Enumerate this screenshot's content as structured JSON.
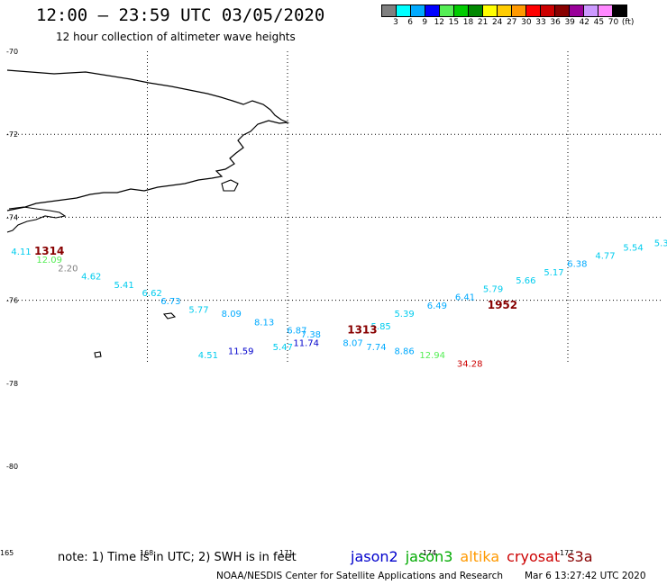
{
  "header": {
    "title": "12:00 – 23:59 UTC 03/05/2020",
    "subtitle": "12 hour collection of altimeter wave heights"
  },
  "legend": {
    "colors": [
      "#808080",
      "#00ffff",
      "#00aaff",
      "#0000ff",
      "#55ee55",
      "#00cc00",
      "#008800",
      "#ffff00",
      "#ffcc00",
      "#ff9900",
      "#ff0000",
      "#cc0000",
      "#880000",
      "#990099",
      "#cc99ff",
      "#ff88ff",
      "#000000"
    ],
    "labels": [
      "3",
      "6",
      "9",
      "12",
      "15",
      "18",
      "21",
      "24",
      "27",
      "30",
      "33",
      "36",
      "39",
      "42",
      "45",
      "70",
      "(ft)"
    ]
  },
  "axes": {
    "lat_labels": [
      "-70",
      "-72",
      "-74",
      "-76",
      "-78",
      "-80"
    ],
    "lon_labels": [
      "165",
      "168",
      "171",
      "-174",
      "177"
    ]
  },
  "chart_data": {
    "type": "scatter",
    "x_axis": "longitude",
    "y_axis": "latitude",
    "times": [
      {
        "label": "1314",
        "lon": 165.9,
        "lat": -74.9,
        "color": "#880000"
      },
      {
        "label": "1313",
        "lon": 172.6,
        "lat": -76.8,
        "color": "#880000"
      },
      {
        "label": "1952",
        "lon": 175.6,
        "lat": -76.2,
        "color": "#880000"
      }
    ],
    "wave_heights": [
      {
        "label": "4.11",
        "lon": 165.3,
        "lat": -74.9,
        "color": "#00ccee"
      },
      {
        "label": "12.09",
        "lon": 165.9,
        "lat": -75.1,
        "color": "#55ee55"
      },
      {
        "label": "2.20",
        "lon": 166.3,
        "lat": -75.3,
        "color": "#808080"
      },
      {
        "label": "4.62",
        "lon": 166.8,
        "lat": -75.5,
        "color": "#00ccee"
      },
      {
        "label": "5.41",
        "lon": 167.5,
        "lat": -75.7,
        "color": "#00ccee"
      },
      {
        "label": "6.62",
        "lon": 168.1,
        "lat": -75.9,
        "color": "#00ccee"
      },
      {
        "label": "6.73",
        "lon": 168.5,
        "lat": -76.1,
        "color": "#00aaff"
      },
      {
        "label": "5.77",
        "lon": 169.1,
        "lat": -76.3,
        "color": "#00ccee"
      },
      {
        "label": "8.09",
        "lon": 169.8,
        "lat": -76.4,
        "color": "#00aaff"
      },
      {
        "label": "8.13",
        "lon": 170.5,
        "lat": -76.6,
        "color": "#00aaff"
      },
      {
        "label": "6.87",
        "lon": 171.2,
        "lat": -76.8,
        "color": "#00aaff"
      },
      {
        "label": "7.38",
        "lon": 171.5,
        "lat": -76.9,
        "color": "#00aaff"
      },
      {
        "label": "11.74",
        "lon": 171.4,
        "lat": -77.1,
        "color": "#0000cc"
      },
      {
        "label": "8.07",
        "lon": 172.4,
        "lat": -77.1,
        "color": "#00aaff"
      },
      {
        "label": "5.85",
        "lon": 173.0,
        "lat": -76.7,
        "color": "#00ccee"
      },
      {
        "label": "5.39",
        "lon": 173.5,
        "lat": -76.4,
        "color": "#00ccee"
      },
      {
        "label": "6.49",
        "lon": 174.2,
        "lat": -76.2,
        "color": "#00aaff"
      },
      {
        "label": "6.41",
        "lon": 174.8,
        "lat": -76.0,
        "color": "#00aaff"
      },
      {
        "label": "5.79",
        "lon": 175.4,
        "lat": -75.8,
        "color": "#00ccee"
      },
      {
        "label": "5.66",
        "lon": 176.1,
        "lat": -75.6,
        "color": "#00ccee"
      },
      {
        "label": "5.17",
        "lon": 176.7,
        "lat": -75.4,
        "color": "#00ccee"
      },
      {
        "label": "6.38",
        "lon": 177.2,
        "lat": -75.2,
        "color": "#00aaff"
      },
      {
        "label": "4.77",
        "lon": 177.8,
        "lat": -75.0,
        "color": "#00ccee"
      },
      {
        "label": "5.54",
        "lon": 178.4,
        "lat": -74.8,
        "color": "#00ccee"
      },
      {
        "label": "5.3",
        "lon": 179.0,
        "lat": -74.7,
        "color": "#00ccee"
      },
      {
        "label": "4.51",
        "lon": 169.3,
        "lat": -77.4,
        "color": "#00ccee"
      },
      {
        "label": "11.59",
        "lon": 170.0,
        "lat": -77.3,
        "color": "#0000cc"
      },
      {
        "label": "5.47",
        "lon": 170.9,
        "lat": -77.2,
        "color": "#00ccee"
      },
      {
        "label": "7.74",
        "lon": 172.9,
        "lat": -77.2,
        "color": "#00aaff"
      },
      {
        "label": "8.86",
        "lon": 173.5,
        "lat": -77.3,
        "color": "#00aaff"
      },
      {
        "label": "12.94",
        "lon": 174.1,
        "lat": -77.4,
        "color": "#55ee55"
      },
      {
        "label": "34.28",
        "lon": 174.9,
        "lat": -77.6,
        "color": "#cc0000"
      }
    ]
  },
  "footer": {
    "note": "note: 1) Time is in UTC; 2) SWH is in feet",
    "satellites": [
      {
        "name": "jason2",
        "color": "#0000cc"
      },
      {
        "name": "jason3",
        "color": "#00aa00"
      },
      {
        "name": "altika",
        "color": "#ff9900"
      },
      {
        "name": "cryosat",
        "color": "#cc0000"
      },
      {
        "name": "s3a",
        "color": "#880000"
      }
    ],
    "credit": "NOAA/NESDIS Center for Satellite Applications and Research",
    "timestamp": "Mar  6 13:27:42 UTC 2020"
  }
}
